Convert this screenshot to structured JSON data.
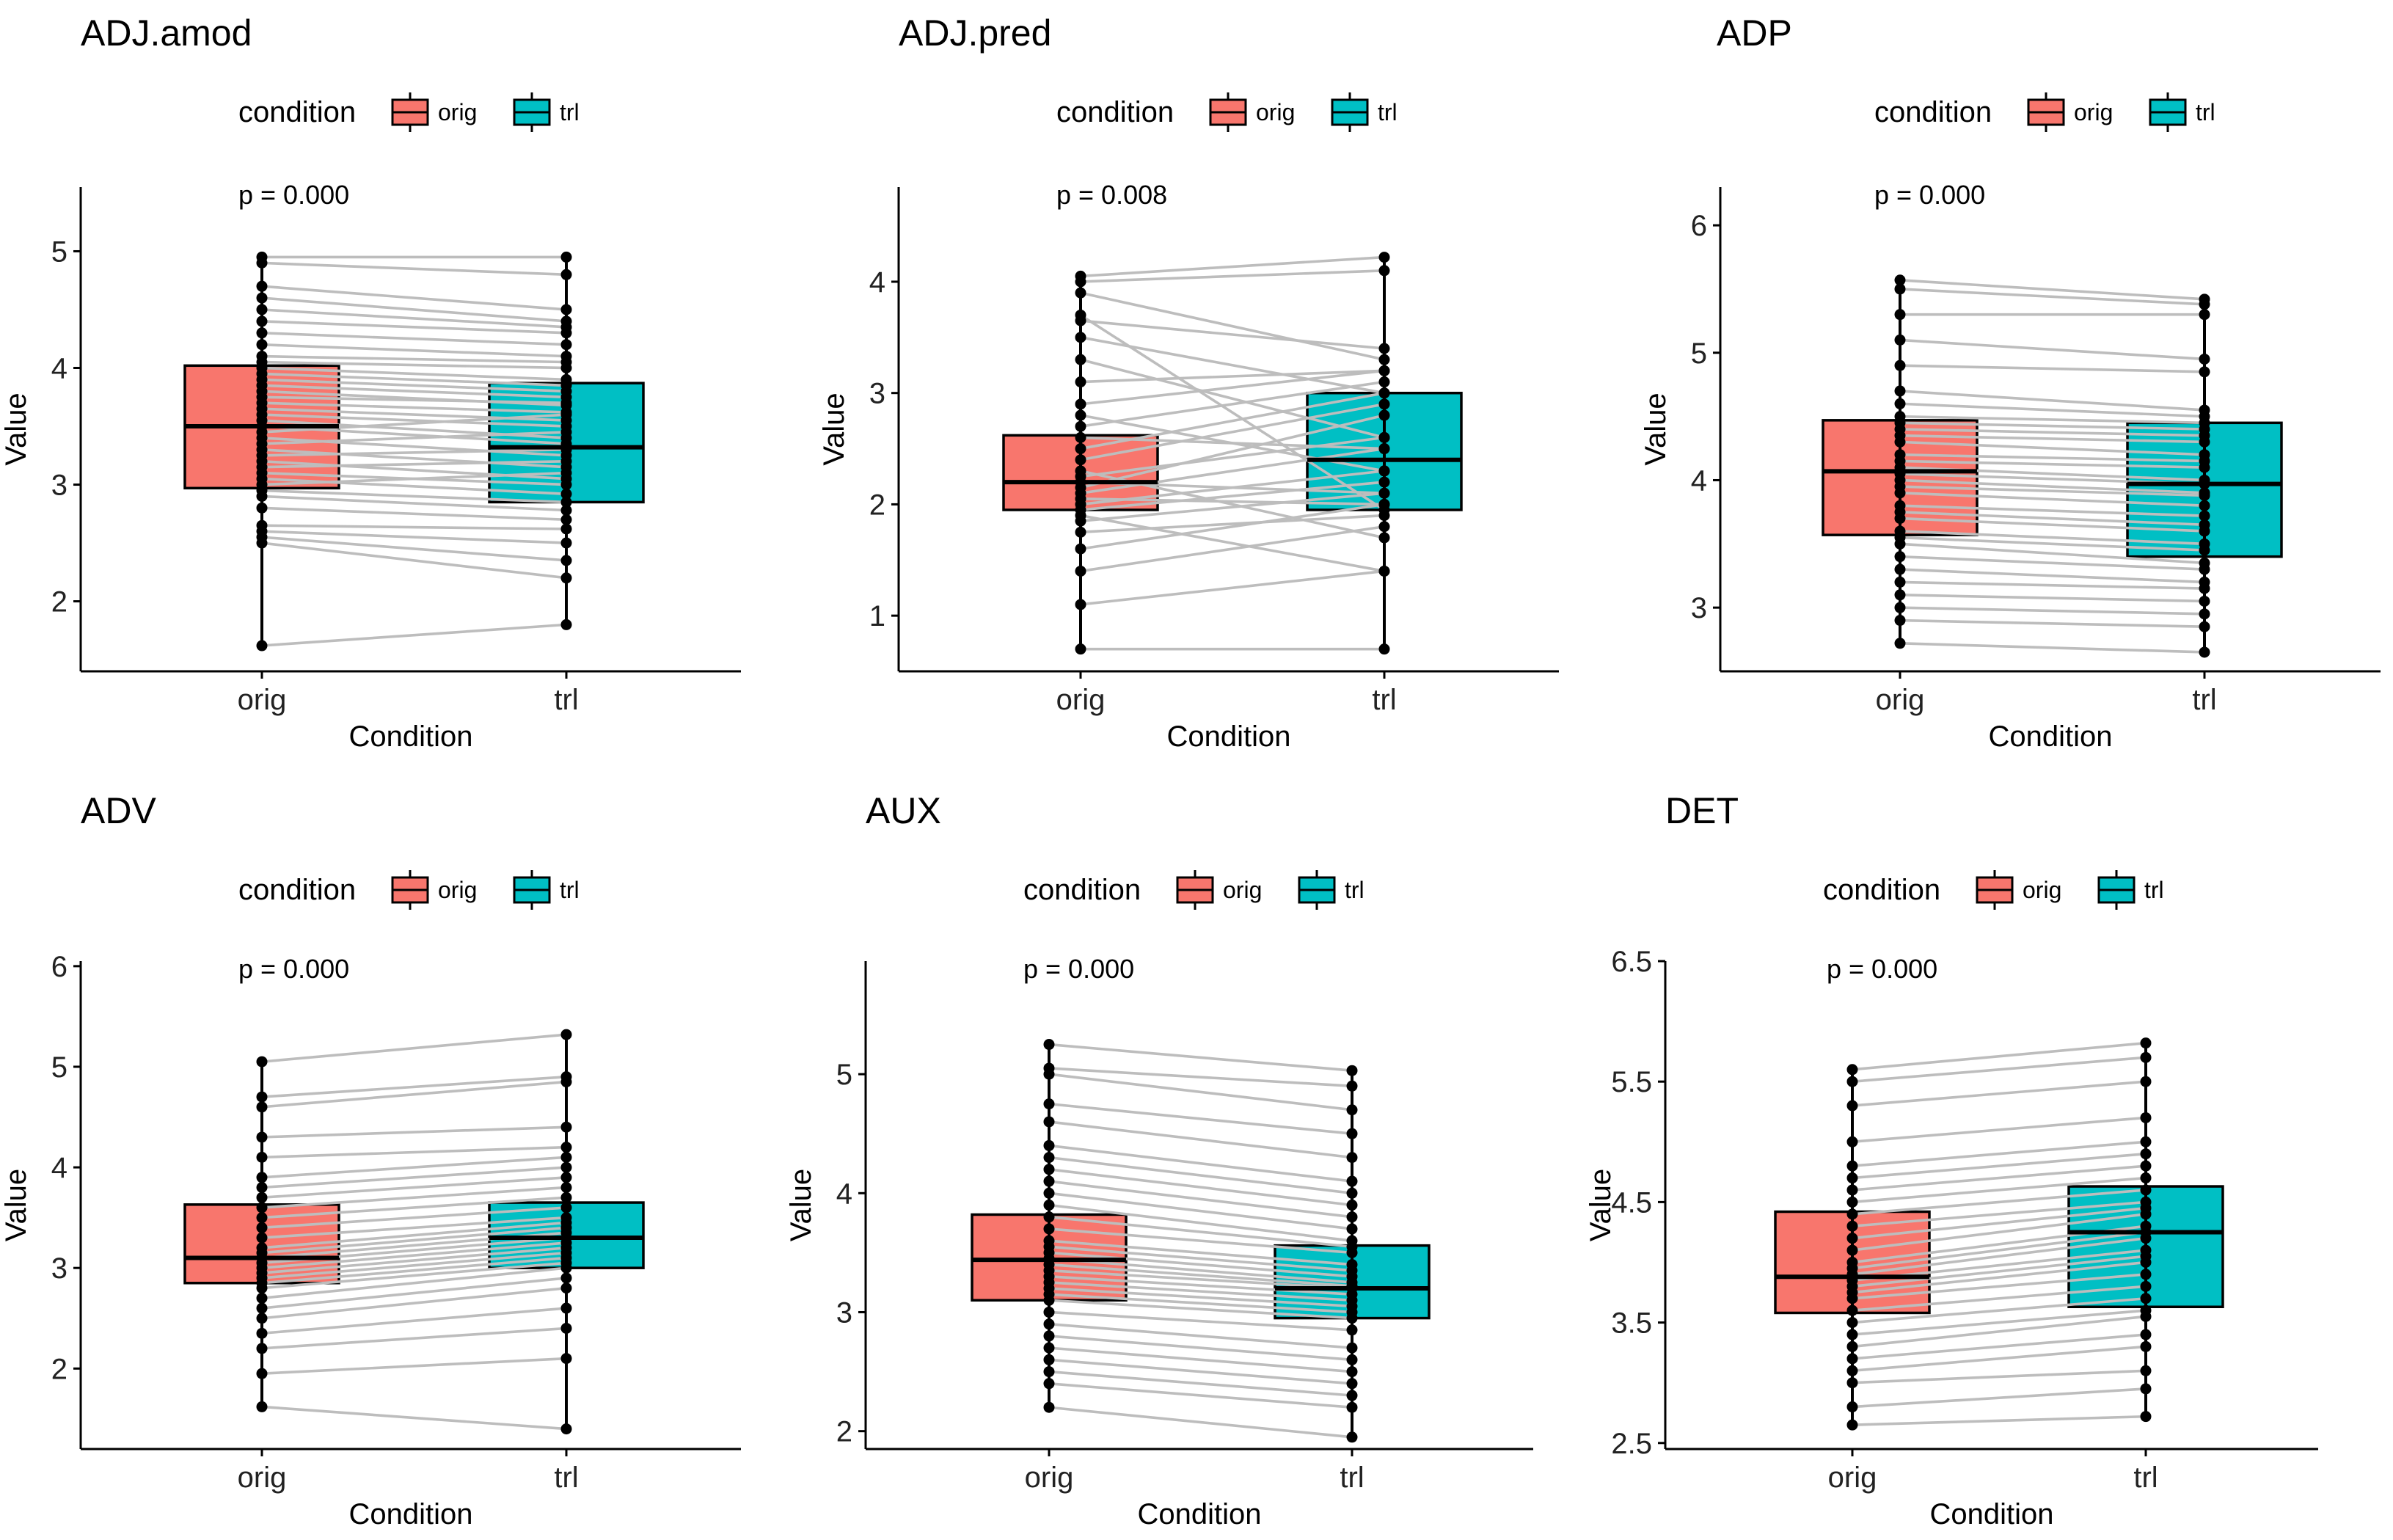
{
  "colors": {
    "orig": "#F8766D",
    "trl": "#00BFC4",
    "pair_line": "#BDBDBD"
  },
  "legend": {
    "title": "condition",
    "labels": [
      "orig",
      "trl"
    ]
  },
  "chart_data": [
    {
      "type": "boxplot-paired",
      "title": "ADJ.amod",
      "ptext": "p = 0.000",
      "xlabel": "Condition",
      "ylabel": "Value",
      "categories": [
        "orig",
        "trl"
      ],
      "ylim": [
        1.4,
        5.55
      ],
      "yticks": [
        2,
        3,
        4,
        5
      ],
      "ytick_labels": [
        "2",
        "3",
        "4",
        "5"
      ],
      "boxes": [
        {
          "category": "orig",
          "q1": 2.97,
          "median": 3.5,
          "q3": 4.02,
          "whisker_low": 1.62,
          "whisker_high": 4.95
        },
        {
          "category": "trl",
          "q1": 2.85,
          "median": 3.32,
          "q3": 3.87,
          "whisker_low": 1.8,
          "whisker_high": 4.95
        }
      ],
      "pairs": [
        [
          1.62,
          1.8
        ],
        [
          2.5,
          2.2
        ],
        [
          2.55,
          2.35
        ],
        [
          2.6,
          2.5
        ],
        [
          2.65,
          2.62
        ],
        [
          2.8,
          2.7
        ],
        [
          2.9,
          2.78
        ],
        [
          2.95,
          2.85
        ],
        [
          3.0,
          3.1
        ],
        [
          3.05,
          2.92
        ],
        [
          3.1,
          3.0
        ],
        [
          3.15,
          3.2
        ],
        [
          3.2,
          3.05
        ],
        [
          3.25,
          3.3
        ],
        [
          3.3,
          3.15
        ],
        [
          3.35,
          3.45
        ],
        [
          3.4,
          3.25
        ],
        [
          3.45,
          3.6
        ],
        [
          3.5,
          3.35
        ],
        [
          3.55,
          3.4
        ],
        [
          3.6,
          3.5
        ],
        [
          3.65,
          3.55
        ],
        [
          3.7,
          3.62
        ],
        [
          3.75,
          3.7
        ],
        [
          3.8,
          3.68
        ],
        [
          3.85,
          3.75
        ],
        [
          3.9,
          3.8
        ],
        [
          3.95,
          3.85
        ],
        [
          4.0,
          3.9
        ],
        [
          4.05,
          4.0
        ],
        [
          4.1,
          4.05
        ],
        [
          4.2,
          4.1
        ],
        [
          4.3,
          4.2
        ],
        [
          4.4,
          4.3
        ],
        [
          4.5,
          4.35
        ],
        [
          4.6,
          4.4
        ],
        [
          4.7,
          4.5
        ],
        [
          4.9,
          4.8
        ],
        [
          4.95,
          4.95
        ]
      ]
    },
    {
      "type": "boxplot-paired",
      "title": "ADJ.pred",
      "ptext": "p = 0.008",
      "xlabel": "Condition",
      "ylabel": "Value",
      "categories": [
        "orig",
        "trl"
      ],
      "ylim": [
        0.5,
        4.85
      ],
      "yticks": [
        1,
        2,
        3,
        4
      ],
      "ytick_labels": [
        "1",
        "2",
        "3",
        "4"
      ],
      "boxes": [
        {
          "category": "orig",
          "q1": 1.95,
          "median": 2.2,
          "q3": 2.62,
          "whisker_low": 0.7,
          "whisker_high": 4.05
        },
        {
          "category": "trl",
          "q1": 1.95,
          "median": 2.4,
          "q3": 3.0,
          "whisker_low": 0.7,
          "whisker_high": 4.22
        }
      ],
      "pairs": [
        [
          0.7,
          0.7
        ],
        [
          1.1,
          1.4
        ],
        [
          1.4,
          1.8
        ],
        [
          1.6,
          2.0
        ],
        [
          1.75,
          1.9
        ],
        [
          1.85,
          2.1
        ],
        [
          1.9,
          1.4
        ],
        [
          1.95,
          2.2
        ],
        [
          2.0,
          2.3
        ],
        [
          2.05,
          2.0
        ],
        [
          2.1,
          2.5
        ],
        [
          2.15,
          2.8
        ],
        [
          2.2,
          2.1
        ],
        [
          2.25,
          2.6
        ],
        [
          2.3,
          1.7
        ],
        [
          2.4,
          2.9
        ],
        [
          2.5,
          3.0
        ],
        [
          2.6,
          2.5
        ],
        [
          2.7,
          3.1
        ],
        [
          2.8,
          2.3
        ],
        [
          2.9,
          3.2
        ],
        [
          3.1,
          3.2
        ],
        [
          3.3,
          2.6
        ],
        [
          3.5,
          3.0
        ],
        [
          3.65,
          3.4
        ],
        [
          3.7,
          1.95
        ],
        [
          3.9,
          3.3
        ],
        [
          4.0,
          4.1
        ],
        [
          4.05,
          4.22
        ]
      ]
    },
    {
      "type": "boxplot-paired",
      "title": "ADP",
      "ptext": "p = 0.000",
      "xlabel": "Condition",
      "ylabel": "Value",
      "categories": [
        "orig",
        "trl"
      ],
      "ylim": [
        2.5,
        6.3
      ],
      "yticks": [
        3,
        4,
        5,
        6
      ],
      "ytick_labels": [
        "3",
        "4",
        "5",
        "6"
      ],
      "boxes": [
        {
          "category": "orig",
          "q1": 3.57,
          "median": 4.07,
          "q3": 4.47,
          "whisker_low": 2.72,
          "whisker_high": 5.57
        },
        {
          "category": "trl",
          "q1": 3.4,
          "median": 3.97,
          "q3": 4.45,
          "whisker_low": 2.65,
          "whisker_high": 5.42
        }
      ],
      "pairs": [
        [
          2.72,
          2.65
        ],
        [
          2.9,
          2.85
        ],
        [
          3.0,
          2.95
        ],
        [
          3.1,
          3.05
        ],
        [
          3.2,
          3.15
        ],
        [
          3.3,
          3.2
        ],
        [
          3.4,
          3.3
        ],
        [
          3.5,
          3.35
        ],
        [
          3.55,
          3.45
        ],
        [
          3.6,
          3.5
        ],
        [
          3.7,
          3.6
        ],
        [
          3.75,
          3.65
        ],
        [
          3.8,
          3.72
        ],
        [
          3.9,
          3.8
        ],
        [
          3.95,
          3.88
        ],
        [
          4.0,
          3.9
        ],
        [
          4.05,
          3.97
        ],
        [
          4.1,
          4.0
        ],
        [
          4.15,
          4.1
        ],
        [
          4.2,
          4.15
        ],
        [
          4.3,
          4.2
        ],
        [
          4.35,
          4.3
        ],
        [
          4.4,
          4.35
        ],
        [
          4.45,
          4.4
        ],
        [
          4.5,
          4.45
        ],
        [
          4.6,
          4.5
        ],
        [
          4.7,
          4.55
        ],
        [
          4.9,
          4.85
        ],
        [
          5.1,
          4.95
        ],
        [
          5.3,
          5.3
        ],
        [
          5.5,
          5.38
        ],
        [
          5.57,
          5.42
        ]
      ]
    },
    {
      "type": "boxplot-paired",
      "title": "ADV",
      "ptext": "p = 0.000",
      "xlabel": "Condition",
      "ylabel": "Value",
      "categories": [
        "orig",
        "trl"
      ],
      "ylim": [
        1.2,
        6.05
      ],
      "yticks": [
        2,
        3,
        4,
        5,
        6
      ],
      "ytick_labels": [
        "2",
        "3",
        "4",
        "5",
        "6"
      ],
      "boxes": [
        {
          "category": "orig",
          "q1": 2.85,
          "median": 3.1,
          "q3": 3.63,
          "whisker_low": 1.62,
          "whisker_high": 5.05
        },
        {
          "category": "trl",
          "q1": 3.0,
          "median": 3.3,
          "q3": 3.65,
          "whisker_low": 1.4,
          "whisker_high": 5.32
        }
      ],
      "pairs": [
        [
          1.62,
          1.4
        ],
        [
          1.95,
          2.1
        ],
        [
          2.2,
          2.4
        ],
        [
          2.35,
          2.6
        ],
        [
          2.5,
          2.8
        ],
        [
          2.6,
          2.9
        ],
        [
          2.7,
          3.0
        ],
        [
          2.8,
          3.05
        ],
        [
          2.85,
          3.1
        ],
        [
          2.9,
          3.15
        ],
        [
          2.95,
          3.2
        ],
        [
          3.0,
          3.25
        ],
        [
          3.05,
          3.3
        ],
        [
          3.1,
          3.35
        ],
        [
          3.15,
          3.4
        ],
        [
          3.2,
          3.45
        ],
        [
          3.3,
          3.5
        ],
        [
          3.4,
          3.6
        ],
        [
          3.5,
          3.7
        ],
        [
          3.6,
          3.8
        ],
        [
          3.7,
          3.9
        ],
        [
          3.8,
          4.0
        ],
        [
          3.9,
          4.1
        ],
        [
          4.1,
          4.2
        ],
        [
          4.3,
          4.4
        ],
        [
          4.6,
          4.85
        ],
        [
          4.7,
          4.9
        ],
        [
          5.05,
          5.32
        ]
      ]
    },
    {
      "type": "boxplot-paired",
      "title": "AUX",
      "ptext": "p = 0.000",
      "xlabel": "Condition",
      "ylabel": "Value",
      "categories": [
        "orig",
        "trl"
      ],
      "ylim": [
        1.85,
        5.95
      ],
      "yticks": [
        2,
        3,
        4,
        5
      ],
      "ytick_labels": [
        "2",
        "3",
        "4",
        "5"
      ],
      "boxes": [
        {
          "category": "orig",
          "q1": 3.1,
          "median": 3.44,
          "q3": 3.82,
          "whisker_low": 2.2,
          "whisker_high": 5.25
        },
        {
          "category": "trl",
          "q1": 2.95,
          "median": 3.2,
          "q3": 3.56,
          "whisker_low": 1.95,
          "whisker_high": 5.03
        }
      ],
      "pairs": [
        [
          2.2,
          1.95
        ],
        [
          2.4,
          2.2
        ],
        [
          2.5,
          2.3
        ],
        [
          2.6,
          2.4
        ],
        [
          2.7,
          2.5
        ],
        [
          2.8,
          2.6
        ],
        [
          2.9,
          2.7
        ],
        [
          3.0,
          2.85
        ],
        [
          3.1,
          2.95
        ],
        [
          3.15,
          3.0
        ],
        [
          3.2,
          3.05
        ],
        [
          3.25,
          3.1
        ],
        [
          3.3,
          3.15
        ],
        [
          3.35,
          3.2
        ],
        [
          3.4,
          3.22
        ],
        [
          3.45,
          3.25
        ],
        [
          3.5,
          3.3
        ],
        [
          3.55,
          3.35
        ],
        [
          3.6,
          3.4
        ],
        [
          3.7,
          3.5
        ],
        [
          3.8,
          3.55
        ],
        [
          3.9,
          3.6
        ],
        [
          4.0,
          3.7
        ],
        [
          4.1,
          3.8
        ],
        [
          4.2,
          3.9
        ],
        [
          4.3,
          4.0
        ],
        [
          4.4,
          4.1
        ],
        [
          4.6,
          4.3
        ],
        [
          4.75,
          4.5
        ],
        [
          5.0,
          4.7
        ],
        [
          5.05,
          4.9
        ],
        [
          5.25,
          5.03
        ]
      ]
    },
    {
      "type": "boxplot-paired",
      "title": "DET",
      "ptext": "p = 0.000",
      "xlabel": "Condition",
      "ylabel": "Value",
      "categories": [
        "orig",
        "trl"
      ],
      "ylim": [
        2.45,
        6.5
      ],
      "yticks": [
        2.5,
        3.5,
        4.5,
        5.5,
        6.5
      ],
      "ytick_labels": [
        "2.5",
        "3.5",
        "4.5",
        "5.5",
        "6.5"
      ],
      "boxes": [
        {
          "category": "orig",
          "q1": 3.58,
          "median": 3.88,
          "q3": 4.42,
          "whisker_low": 2.65,
          "whisker_high": 5.6
        },
        {
          "category": "trl",
          "q1": 3.63,
          "median": 4.25,
          "q3": 4.63,
          "whisker_low": 2.72,
          "whisker_high": 5.82
        }
      ],
      "pairs": [
        [
          2.65,
          2.72
        ],
        [
          2.8,
          2.95
        ],
        [
          3.0,
          3.1
        ],
        [
          3.1,
          3.3
        ],
        [
          3.2,
          3.4
        ],
        [
          3.3,
          3.55
        ],
        [
          3.4,
          3.6
        ],
        [
          3.5,
          3.7
        ],
        [
          3.6,
          3.8
        ],
        [
          3.7,
          3.9
        ],
        [
          3.75,
          4.0
        ],
        [
          3.8,
          4.05
        ],
        [
          3.85,
          4.1
        ],
        [
          3.9,
          4.2
        ],
        [
          3.95,
          4.25
        ],
        [
          4.0,
          4.3
        ],
        [
          4.1,
          4.4
        ],
        [
          4.2,
          4.45
        ],
        [
          4.3,
          4.5
        ],
        [
          4.4,
          4.6
        ],
        [
          4.5,
          4.7
        ],
        [
          4.6,
          4.8
        ],
        [
          4.7,
          4.9
        ],
        [
          4.8,
          5.0
        ],
        [
          5.0,
          5.2
        ],
        [
          5.3,
          5.5
        ],
        [
          5.5,
          5.7
        ],
        [
          5.6,
          5.82
        ]
      ]
    }
  ]
}
